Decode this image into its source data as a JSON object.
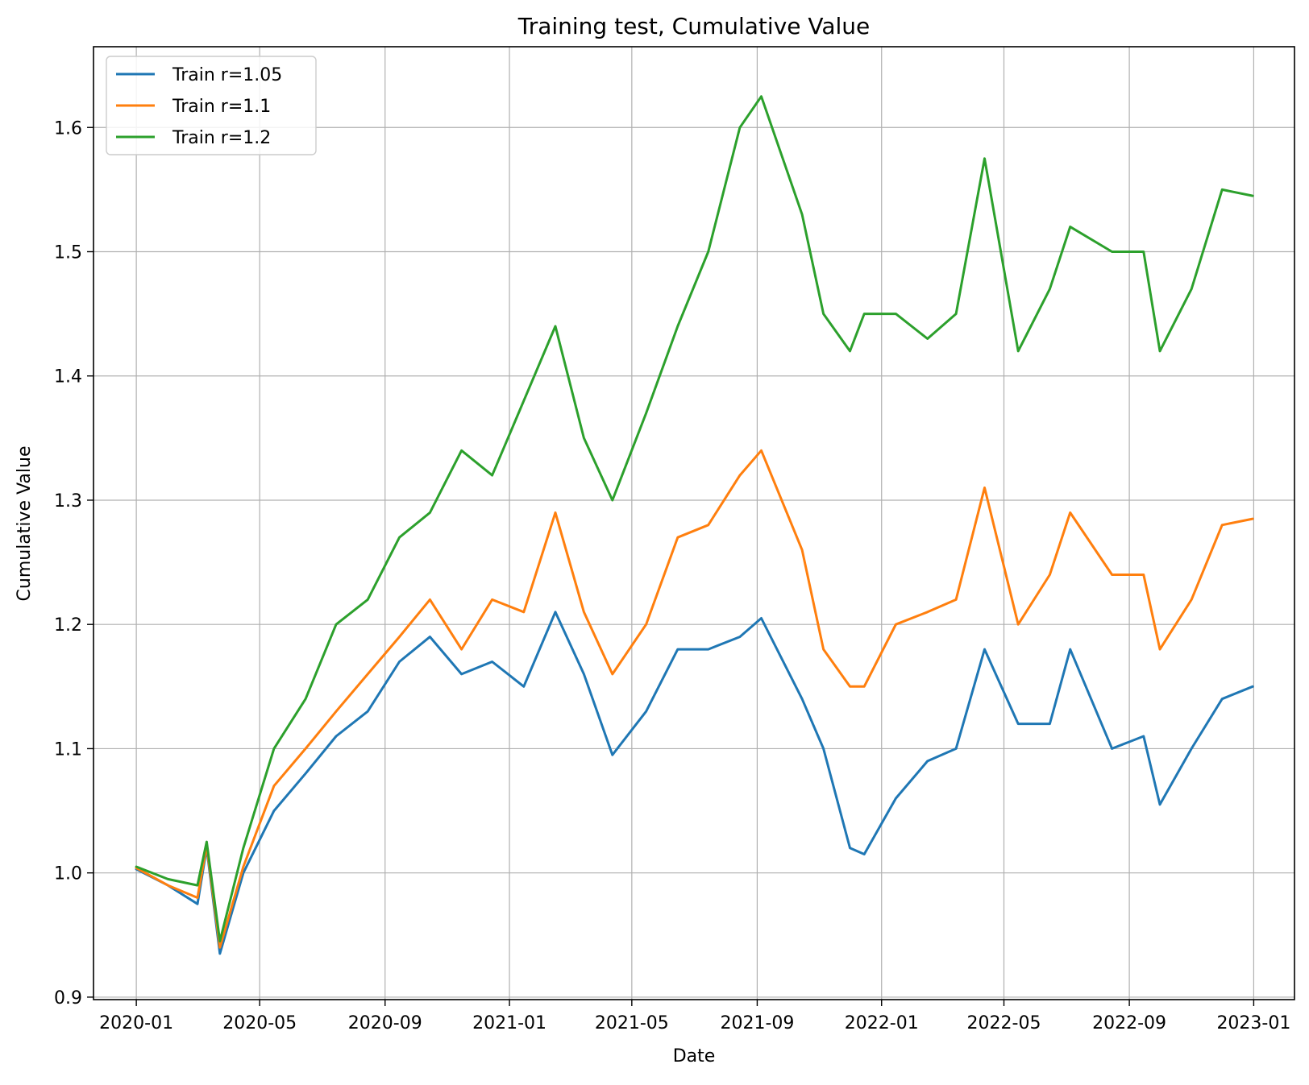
{
  "chart_data": {
    "type": "line",
    "title": "Training test, Cumulative Value",
    "xlabel": "Date",
    "ylabel": "Cumulative Value",
    "xlim": [
      "2019-11-20",
      "2023-02-10"
    ],
    "ylim": [
      0.898,
      1.665
    ],
    "grid": true,
    "legend_position": "top-left",
    "x_ticks": [
      "2020-01",
      "2020-05",
      "2020-09",
      "2021-01",
      "2021-05",
      "2021-09",
      "2022-01",
      "2022-05",
      "2022-09",
      "2023-01"
    ],
    "y_ticks": [
      "0.9",
      "1.0",
      "1.1",
      "1.2",
      "1.3",
      "1.4",
      "1.5",
      "1.6"
    ],
    "x": [
      "2020-01-01",
      "2020-02-01",
      "2020-03-01",
      "2020-03-10",
      "2020-03-23",
      "2020-04-15",
      "2020-05-15",
      "2020-06-15",
      "2020-07-15",
      "2020-08-15",
      "2020-09-15",
      "2020-10-15",
      "2020-11-15",
      "2020-12-15",
      "2021-01-15",
      "2021-02-15",
      "2021-03-15",
      "2021-04-12",
      "2021-05-15",
      "2021-06-15",
      "2021-07-15",
      "2021-08-15",
      "2021-09-05",
      "2021-10-15",
      "2021-11-05",
      "2021-12-01",
      "2021-12-15",
      "2022-01-15",
      "2022-02-15",
      "2022-03-15",
      "2022-04-12",
      "2022-05-15",
      "2022-06-15",
      "2022-07-05",
      "2022-08-15",
      "2022-09-15",
      "2022-10-01",
      "2022-11-01",
      "2022-12-01",
      "2022-12-31"
    ],
    "series": [
      {
        "name": "Train r=1.05",
        "color": "#1f77b4",
        "values": [
          1.003,
          0.99,
          0.975,
          1.02,
          0.935,
          1.0,
          1.05,
          1.08,
          1.11,
          1.13,
          1.17,
          1.19,
          1.16,
          1.17,
          1.15,
          1.21,
          1.16,
          1.095,
          1.13,
          1.18,
          1.18,
          1.19,
          1.205,
          1.14,
          1.1,
          1.02,
          1.015,
          1.06,
          1.09,
          1.1,
          1.18,
          1.12,
          1.12,
          1.18,
          1.1,
          1.11,
          1.055,
          1.1,
          1.14,
          1.15
        ]
      },
      {
        "name": "Train r=1.1",
        "color": "#ff7f0e",
        "values": [
          1.004,
          0.99,
          0.98,
          1.022,
          0.94,
          1.005,
          1.07,
          1.1,
          1.13,
          1.16,
          1.19,
          1.22,
          1.18,
          1.22,
          1.21,
          1.29,
          1.21,
          1.16,
          1.2,
          1.27,
          1.28,
          1.32,
          1.34,
          1.26,
          1.18,
          1.15,
          1.15,
          1.2,
          1.21,
          1.22,
          1.31,
          1.2,
          1.24,
          1.29,
          1.24,
          1.24,
          1.18,
          1.22,
          1.28,
          1.285
        ]
      },
      {
        "name": "Train r=1.2",
        "color": "#2ca02c",
        "values": [
          1.005,
          0.995,
          0.99,
          1.025,
          0.945,
          1.02,
          1.1,
          1.14,
          1.2,
          1.22,
          1.27,
          1.29,
          1.34,
          1.32,
          1.38,
          1.44,
          1.35,
          1.3,
          1.37,
          1.44,
          1.5,
          1.6,
          1.625,
          1.53,
          1.45,
          1.42,
          1.45,
          1.45,
          1.43,
          1.45,
          1.575,
          1.42,
          1.47,
          1.52,
          1.5,
          1.5,
          1.42,
          1.47,
          1.55,
          1.545
        ]
      }
    ]
  }
}
